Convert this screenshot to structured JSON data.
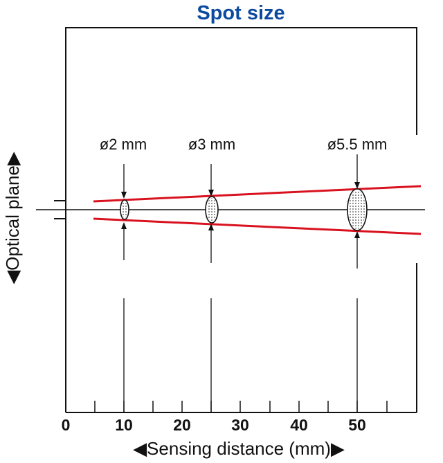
{
  "title": "Spot size",
  "x_axis": {
    "label": "◀Sensing distance (mm)▶",
    "tick_labels": [
      "0",
      "10",
      "20",
      "30",
      "40",
      "50"
    ],
    "ticks": [
      0,
      5,
      10,
      15,
      20,
      25,
      30,
      35,
      40,
      45,
      50
    ]
  },
  "y_axis": {
    "label": "◀Optical plane▶"
  },
  "spots": [
    {
      "distance": 10,
      "label": "ø2 mm",
      "diameter_mm": 2
    },
    {
      "distance": 25,
      "label": "ø3 mm",
      "diameter_mm": 3
    },
    {
      "distance": 50,
      "label": "ø5.5 mm",
      "diameter_mm": 5.5
    }
  ],
  "colors": {
    "title": "#0b4a9e",
    "beam": "#d9121f",
    "lines": "#111111"
  }
}
